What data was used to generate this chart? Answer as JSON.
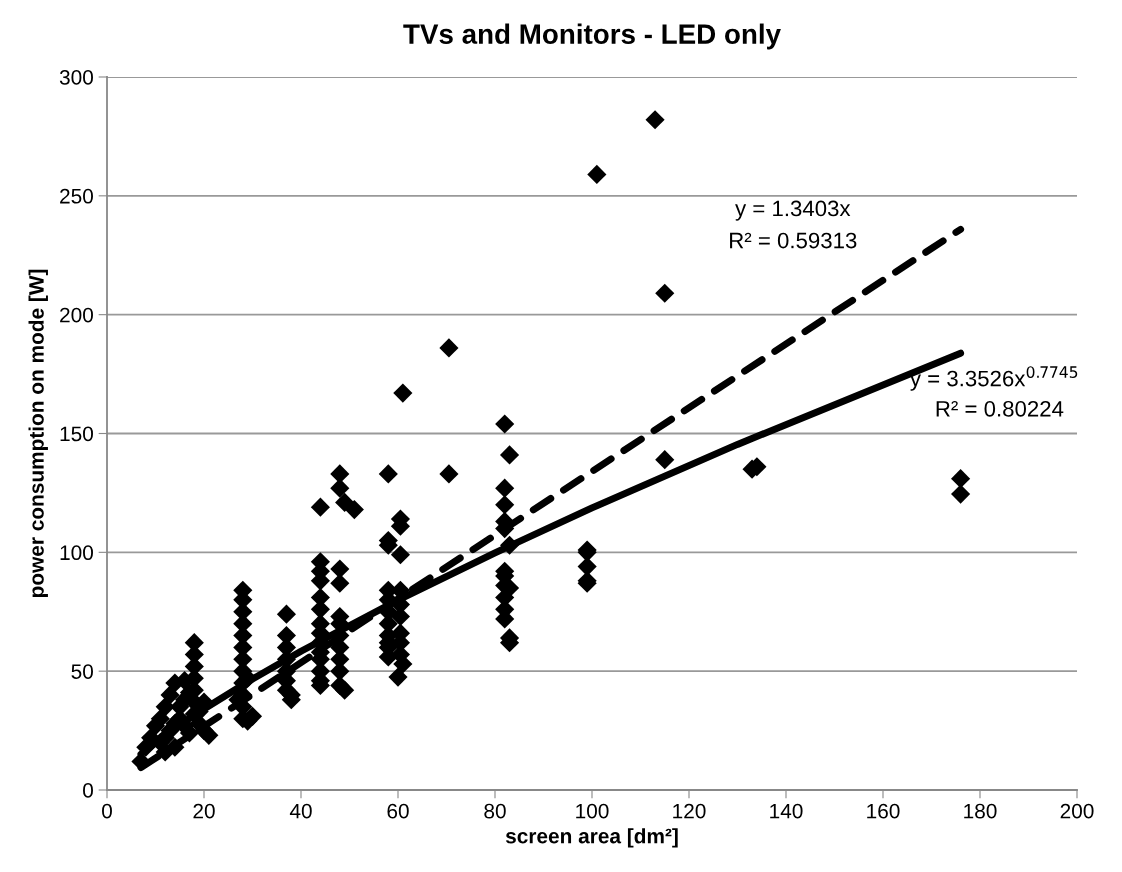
{
  "chart_data": {
    "type": "scatter",
    "title": "TVs and Monitors - LED only",
    "xlabel": "screen area [dm²]",
    "ylabel": "power consumption on mode [W]",
    "xlim": [
      0,
      200
    ],
    "xticks": [
      0,
      20,
      40,
      60,
      80,
      100,
      120,
      140,
      160,
      180,
      200
    ],
    "ylim": [
      0,
      300
    ],
    "yticks": [
      0,
      50,
      100,
      150,
      200,
      250,
      300
    ],
    "grid": "y",
    "series": [
      {
        "type": "scatter",
        "marker": "diamond",
        "color": "#000000",
        "x": [
          113,
          101,
          115,
          70.5,
          61,
          82,
          83,
          115,
          133,
          134,
          176,
          176,
          70.5,
          58,
          48,
          48,
          49,
          51,
          44,
          60.5,
          60.5,
          60.5,
          82,
          82,
          82,
          82,
          83,
          82,
          82,
          82,
          83,
          82,
          82,
          82,
          83,
          83,
          99,
          99,
          99,
          99,
          99,
          58,
          58,
          44,
          44,
          44,
          44,
          44,
          44,
          44,
          44,
          44,
          44,
          44,
          44,
          44,
          48,
          48,
          48,
          48,
          48,
          48,
          48,
          48,
          48,
          49,
          58,
          58,
          58,
          58,
          58,
          58,
          58,
          58,
          60.5,
          60.5,
          60.5,
          60.5,
          60.5,
          60.5,
          61,
          60,
          37,
          37,
          37,
          37,
          37,
          37,
          37,
          38,
          38,
          28,
          28,
          28,
          28,
          28,
          28,
          28,
          28,
          28,
          28,
          28,
          28,
          27,
          29,
          30,
          29,
          18,
          18,
          18,
          18,
          18,
          18,
          18,
          19,
          20,
          21,
          16,
          14,
          13,
          12,
          11,
          10,
          9,
          8,
          7,
          11,
          12,
          13,
          14,
          15,
          15,
          16,
          17,
          16,
          14,
          12,
          17,
          19,
          20
        ],
        "values": [
          282,
          259,
          209,
          186,
          167,
          154,
          141,
          139,
          135,
          136,
          131,
          124.5,
          133,
          133,
          133,
          127,
          121,
          118,
          119,
          114,
          111,
          99,
          127,
          120,
          113,
          110,
          103,
          92,
          90,
          86,
          85,
          81,
          76,
          72,
          64,
          62,
          101,
          100,
          94,
          88,
          87,
          105,
          103,
          96,
          92,
          88,
          81,
          76,
          70,
          66,
          62,
          58,
          55,
          50,
          46,
          44,
          93,
          87,
          73,
          70,
          65,
          60,
          55,
          50,
          44,
          42,
          84,
          80,
          75,
          70,
          65,
          62,
          60,
          56,
          84,
          78,
          73,
          66,
          62,
          57,
          53,
          47.5,
          74,
          65,
          60,
          55,
          50,
          46,
          42,
          38,
          40,
          84,
          80,
          75,
          70,
          65,
          60,
          55,
          50,
          45,
          40,
          35,
          30,
          38,
          29,
          31,
          47,
          62,
          57,
          52,
          47,
          42,
          37,
          32,
          28,
          25,
          23,
          46,
          45,
          40,
          35,
          30,
          27,
          22,
          18,
          12,
          20,
          22,
          25,
          28,
          30,
          35,
          38,
          41,
          27,
          18,
          16,
          24,
          33,
          37
        ]
      },
      {
        "type": "line",
        "line_style": "dashed",
        "color": "#000000",
        "x": [
          7,
          176
        ],
        "values": [
          9.4,
          235.9
        ]
      },
      {
        "type": "line",
        "line_style": "solid",
        "color": "#000000",
        "x": [
          7,
          10,
          15,
          20,
          30,
          40,
          60,
          80,
          100,
          130,
          176
        ],
        "values": [
          15.1,
          19.9,
          27.3,
          34.1,
          46.7,
          58.4,
          79.9,
          99.8,
          118.7,
          145.4,
          183.8
        ]
      }
    ],
    "annotations": [
      "y = 1.3403x",
      "R² = 0.59313",
      "y = 3.3526x$^{0.7745}$",
      "R² = 0.80224"
    ]
  }
}
